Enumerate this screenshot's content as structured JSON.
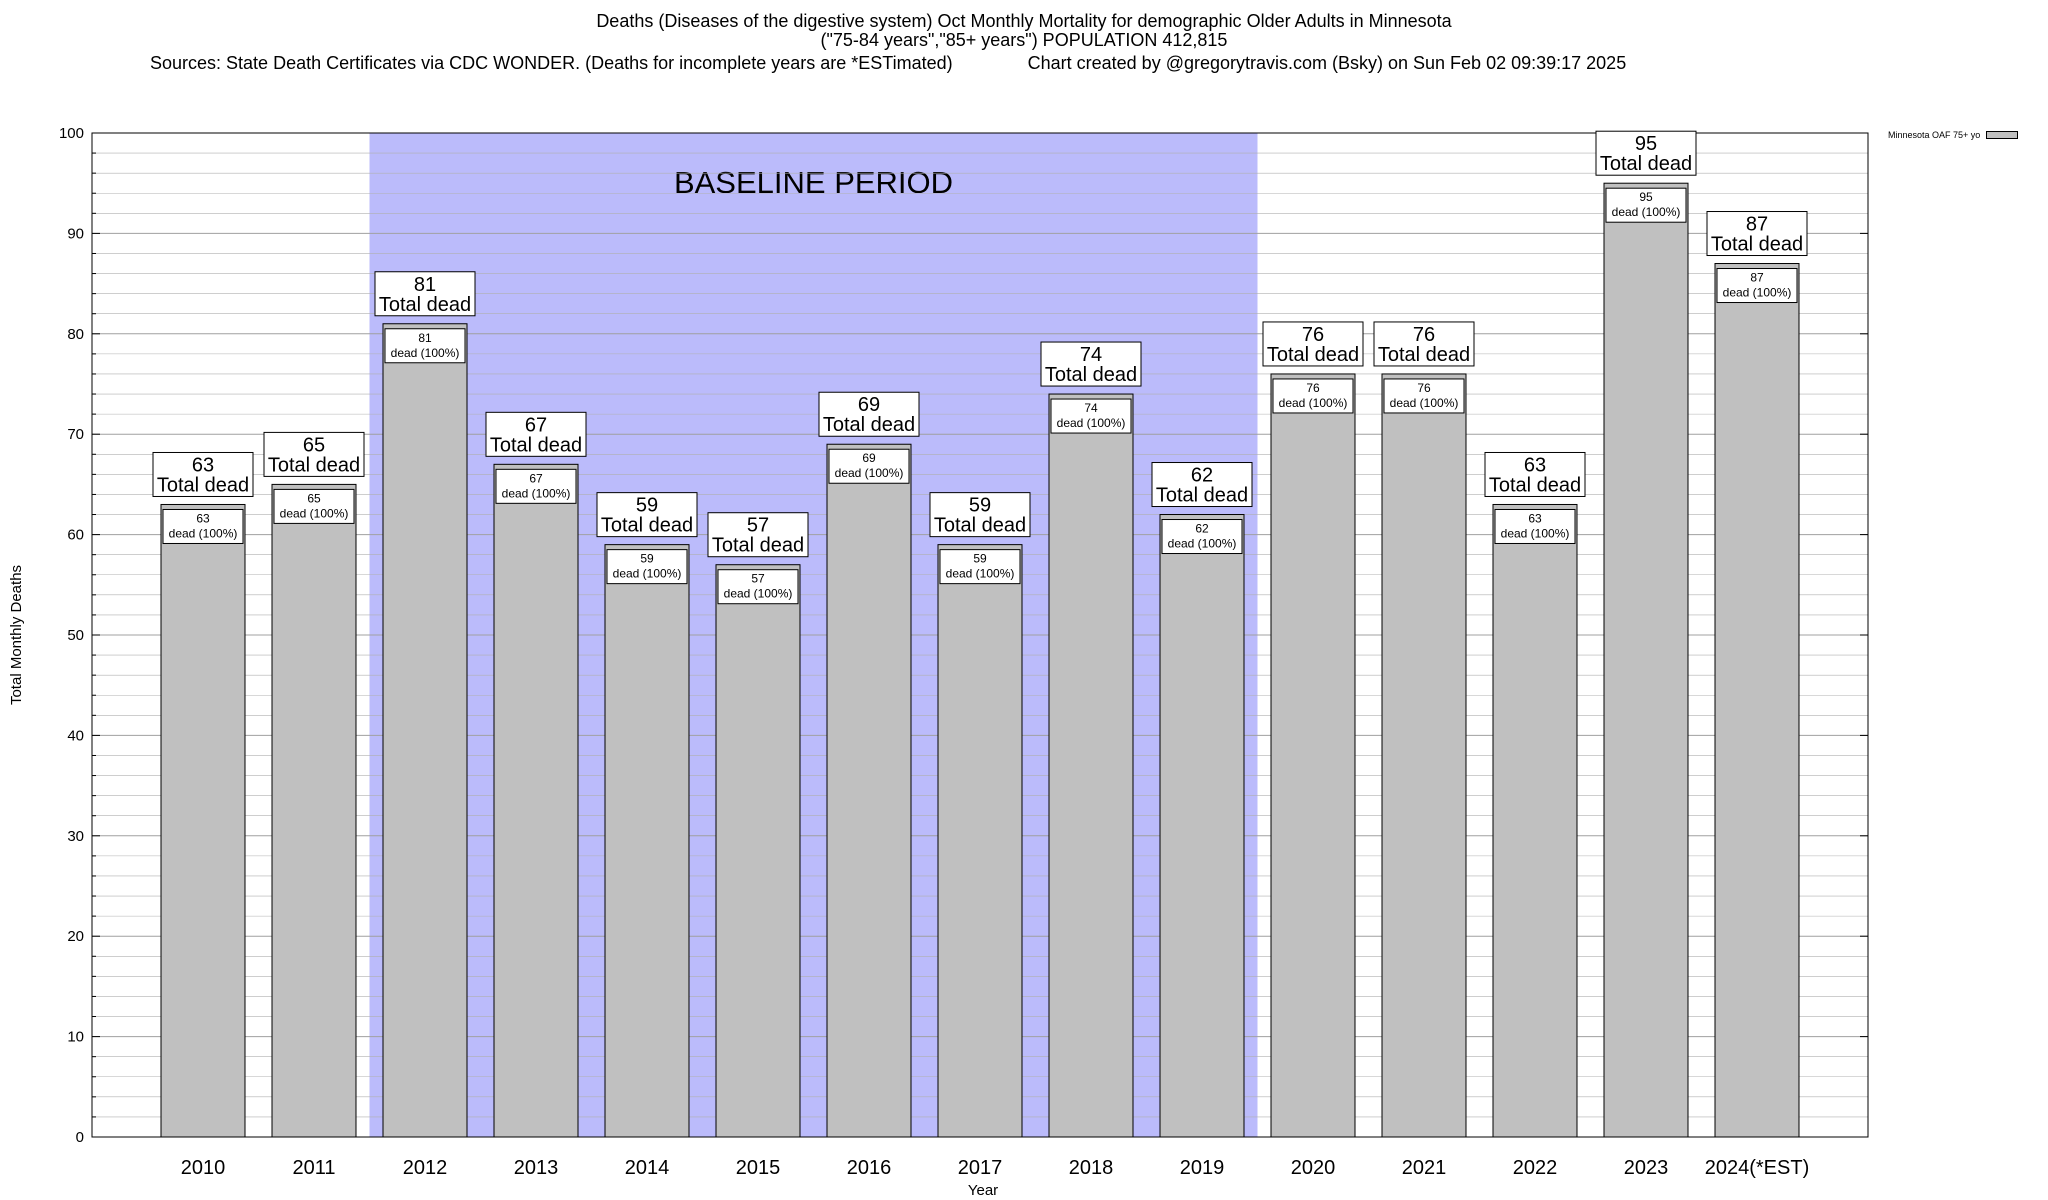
{
  "header": {
    "title_line1": "Deaths (Diseases of the digestive system) Oct Monthly Mortality for demographic Older Adults in Minnesota",
    "title_line2": "(\"75-84 years\",\"85+ years\") POPULATION 412,815",
    "sources": "Sources: State Death Certificates via CDC WONDER. (Deaths for incomplete years are *ESTimated)",
    "credit": "Chart created by @gregorytravis.com (Bsky) on Sun Feb 02 09:39:17 2025"
  },
  "legend": {
    "label": "Minnesota OAF 75+ yo",
    "placement": "top-right"
  },
  "colors": {
    "bar_fill": "#c0c0c0",
    "baseline_shade": "#bbbbfb",
    "grid": "#b0b0b0"
  },
  "chart_data": {
    "type": "bar",
    "title": "Deaths (Diseases of the digestive system) Oct Monthly Mortality for demographic Older Adults in Minnesota",
    "subtitle": "(\"75-84 years\",\"85+ years\") POPULATION 412,815",
    "xlabel": "Year",
    "ylabel": "Total Monthly Deaths",
    "ylim": [
      0,
      100
    ],
    "yticks": [
      0,
      10,
      20,
      30,
      40,
      50,
      60,
      70,
      80,
      90,
      100
    ],
    "grid": true,
    "categories": [
      "2010",
      "2011",
      "2012",
      "2013",
      "2014",
      "2015",
      "2016",
      "2017",
      "2018",
      "2019",
      "2020",
      "2021",
      "2022",
      "2023",
      "2024(*EST)"
    ],
    "series": [
      {
        "name": "Minnesota OAF 75+ yo",
        "values": [
          63,
          65,
          81,
          67,
          59,
          57,
          69,
          59,
          74,
          62,
          76,
          76,
          63,
          95,
          87
        ]
      }
    ],
    "outer_label_suffix": "Total dead",
    "inner_label_suffix": "dead (100%)",
    "baseline_period": {
      "label": "BASELINE PERIOD",
      "from": "2012",
      "to": "2019"
    }
  }
}
